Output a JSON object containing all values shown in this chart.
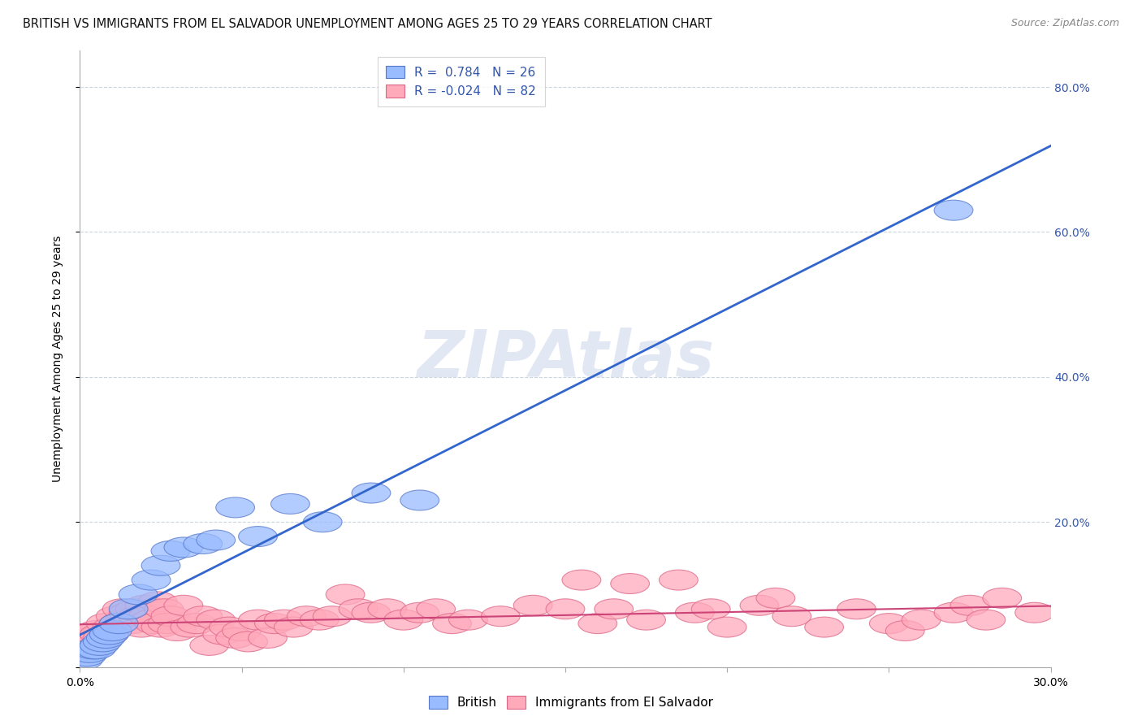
{
  "title": "BRITISH VS IMMIGRANTS FROM EL SALVADOR UNEMPLOYMENT AMONG AGES 25 TO 29 YEARS CORRELATION CHART",
  "source": "Source: ZipAtlas.com",
  "ylabel": "Unemployment Among Ages 25 to 29 years",
  "xlim": [
    0.0,
    0.3
  ],
  "ylim": [
    -0.02,
    0.85
  ],
  "plot_ylim": [
    0.0,
    0.85
  ],
  "xtick_positions": [
    0.0,
    0.05,
    0.1,
    0.15,
    0.2,
    0.25,
    0.3
  ],
  "xtick_labels_show": [
    "0.0%",
    "",
    "",
    "",
    "",
    "",
    "30.0%"
  ],
  "yticks_right": [
    0.0,
    0.2,
    0.4,
    0.6,
    0.8
  ],
  "ytick_labels_right": [
    "",
    "20.0%",
    "40.0%",
    "60.0%",
    "80.0%"
  ],
  "british_color": "#99bbff",
  "salvador_color": "#ffaabb",
  "british_edge": "#5577cc",
  "salvador_edge": "#dd6688",
  "line_blue": "#3366cc",
  "line_pink": "#cc4477",
  "legend_R_british": "R =  0.784",
  "legend_N_british": "N = 26",
  "legend_R_salvador": "R = -0.024",
  "legend_N_salvador": "N = 82",
  "legend_color": "#3355aa",
  "watermark": "ZIPAtlas",
  "watermark_color": "#aabbdd",
  "british_x": [
    0.001,
    0.002,
    0.003,
    0.004,
    0.005,
    0.006,
    0.007,
    0.008,
    0.009,
    0.01,
    0.012,
    0.015,
    0.018,
    0.022,
    0.025,
    0.028,
    0.032,
    0.038,
    0.042,
    0.048,
    0.055,
    0.065,
    0.075,
    0.09,
    0.105,
    0.27
  ],
  "british_y": [
    0.01,
    0.015,
    0.02,
    0.025,
    0.025,
    0.03,
    0.035,
    0.04,
    0.045,
    0.05,
    0.06,
    0.08,
    0.1,
    0.12,
    0.14,
    0.16,
    0.165,
    0.17,
    0.175,
    0.22,
    0.18,
    0.225,
    0.2,
    0.24,
    0.23,
    0.63
  ],
  "salvador_x": [
    0.001,
    0.002,
    0.003,
    0.004,
    0.005,
    0.006,
    0.007,
    0.008,
    0.009,
    0.01,
    0.011,
    0.012,
    0.013,
    0.014,
    0.015,
    0.016,
    0.017,
    0.018,
    0.019,
    0.02,
    0.021,
    0.022,
    0.023,
    0.024,
    0.025,
    0.026,
    0.027,
    0.028,
    0.03,
    0.032,
    0.034,
    0.036,
    0.038,
    0.04,
    0.042,
    0.044,
    0.046,
    0.048,
    0.05,
    0.052,
    0.055,
    0.058,
    0.06,
    0.063,
    0.066,
    0.07,
    0.074,
    0.078,
    0.082,
    0.086,
    0.09,
    0.095,
    0.1,
    0.105,
    0.11,
    0.115,
    0.12,
    0.13,
    0.14,
    0.15,
    0.155,
    0.16,
    0.165,
    0.17,
    0.175,
    0.185,
    0.19,
    0.195,
    0.2,
    0.21,
    0.215,
    0.22,
    0.23,
    0.24,
    0.25,
    0.255,
    0.26,
    0.27,
    0.275,
    0.28,
    0.285,
    0.295
  ],
  "salvador_y": [
    0.035,
    0.04,
    0.045,
    0.035,
    0.05,
    0.045,
    0.04,
    0.06,
    0.045,
    0.055,
    0.07,
    0.06,
    0.08,
    0.065,
    0.075,
    0.06,
    0.08,
    0.07,
    0.055,
    0.085,
    0.07,
    0.065,
    0.06,
    0.09,
    0.055,
    0.08,
    0.06,
    0.07,
    0.05,
    0.085,
    0.055,
    0.06,
    0.07,
    0.03,
    0.065,
    0.045,
    0.055,
    0.04,
    0.05,
    0.035,
    0.065,
    0.04,
    0.06,
    0.065,
    0.055,
    0.07,
    0.065,
    0.07,
    0.1,
    0.08,
    0.075,
    0.08,
    0.065,
    0.075,
    0.08,
    0.06,
    0.065,
    0.07,
    0.085,
    0.08,
    0.12,
    0.06,
    0.08,
    0.115,
    0.065,
    0.12,
    0.075,
    0.08,
    0.055,
    0.085,
    0.095,
    0.07,
    0.055,
    0.08,
    0.06,
    0.05,
    0.065,
    0.075,
    0.085,
    0.065,
    0.095,
    0.075
  ]
}
